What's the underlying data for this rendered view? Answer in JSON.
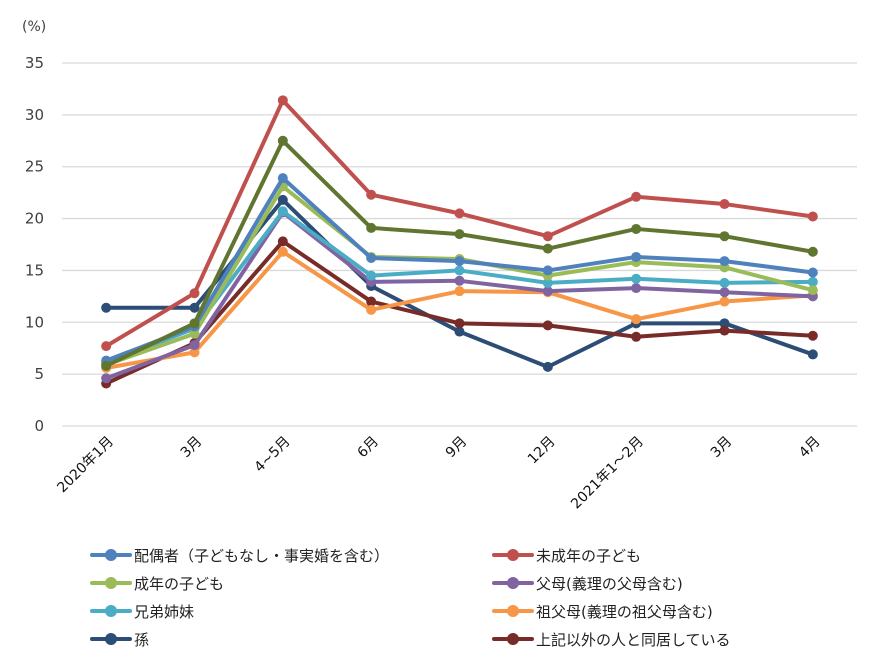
{
  "chart_data": {
    "type": "line",
    "unit_label": "(%)",
    "ylim": [
      0,
      35
    ],
    "yticks": [
      0,
      5,
      10,
      15,
      20,
      25,
      30,
      35
    ],
    "grid": true,
    "legend_position": "bottom",
    "categories": [
      "2020年1月",
      "3月",
      "4~5月",
      "6月",
      "9月",
      "12月",
      "2021年1～2月",
      "3月",
      "4月"
    ],
    "series": [
      {
        "name": "配偶者（子どもなし・事実婚を含む）",
        "color": "#4F81BD",
        "values": [
          6.3,
          9.6,
          23.9,
          16.2,
          15.9,
          15.0,
          16.3,
          15.9,
          14.8
        ],
        "in_legend": true
      },
      {
        "name": "未成年の子ども",
        "color": "#C0504D",
        "values": [
          7.7,
          12.8,
          31.4,
          22.3,
          20.5,
          18.3,
          22.1,
          21.4,
          20.2
        ],
        "in_legend": true
      },
      {
        "name": "成年の子ども",
        "color": "#9BBB59",
        "values": [
          5.9,
          8.9,
          23.1,
          16.3,
          16.1,
          14.5,
          15.8,
          15.3,
          13.1
        ],
        "in_legend": true
      },
      {
        "name": "父母(義理の父母含む)",
        "color": "#8064A2",
        "values": [
          4.6,
          7.8,
          20.6,
          13.9,
          14.0,
          13.0,
          13.3,
          12.9,
          12.5
        ],
        "in_legend": true
      },
      {
        "name": "兄弟姉妹",
        "color": "#4BACC6",
        "values": [
          6.1,
          9.4,
          20.7,
          14.5,
          15.0,
          13.8,
          14.2,
          13.8,
          13.9
        ],
        "in_legend": true
      },
      {
        "name": "祖父母(義理の祖父母含む)",
        "color": "#F79646",
        "values": [
          5.6,
          7.1,
          16.8,
          11.2,
          13.0,
          12.9,
          10.3,
          12.0,
          12.6
        ],
        "in_legend": true
      },
      {
        "name": "孫",
        "color": "#2C4D75",
        "values": [
          11.4,
          11.4,
          21.8,
          13.5,
          9.1,
          5.7,
          9.9,
          9.9,
          6.9
        ],
        "in_legend": true
      },
      {
        "name": "上記以外の人と同居している",
        "color": "#772C2A",
        "values": [
          4.1,
          8.0,
          17.8,
          12.0,
          9.9,
          9.7,
          8.6,
          9.2,
          8.7
        ],
        "in_legend": true
      },
      {
        "name": "",
        "color": "#5F7530",
        "values": [
          5.8,
          9.9,
          27.5,
          19.1,
          18.5,
          17.1,
          19.0,
          18.3,
          16.8
        ],
        "in_legend": false
      }
    ]
  }
}
